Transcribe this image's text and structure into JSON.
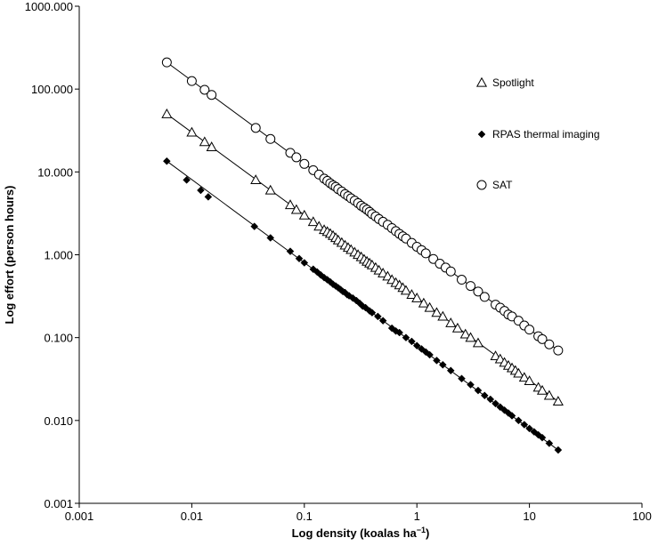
{
  "chart_data": {
    "type": "scatter",
    "xscale": "log",
    "yscale": "log",
    "xlabel": "Log density (koalas ha",
    "xlabel_sup": "−1",
    "xlabel_end": ")",
    "ylabel": "Log effort (person hours)",
    "xlim": [
      0.001,
      100
    ],
    "ylim": [
      0.001,
      1000
    ],
    "xticks": [
      0.001,
      0.01,
      0.1,
      1,
      10,
      100
    ],
    "xtick_labels": [
      "0.001",
      "0.01",
      "0.1",
      "1",
      "10",
      "100"
    ],
    "yticks": [
      0.001,
      0.01,
      0.1,
      1,
      10,
      100,
      1000
    ],
    "ytick_labels": [
      "0.001",
      "0.010",
      "0.100",
      "1.000",
      "10.000",
      "100.000",
      "1000.000"
    ],
    "grid": false,
    "legend_position": "top-right",
    "series": [
      {
        "name": "Spotlight",
        "marker": "triangle-open",
        "fit_line": true,
        "x": [
          0.006,
          0.01,
          0.013,
          0.015,
          0.037,
          0.05,
          0.075,
          0.085,
          0.1,
          0.12,
          0.135,
          0.15,
          0.16,
          0.17,
          0.18,
          0.19,
          0.2,
          0.215,
          0.23,
          0.245,
          0.26,
          0.28,
          0.3,
          0.32,
          0.34,
          0.36,
          0.38,
          0.4,
          0.43,
          0.46,
          0.5,
          0.55,
          0.6,
          0.65,
          0.7,
          0.75,
          0.8,
          0.9,
          1.0,
          1.15,
          1.3,
          1.5,
          1.7,
          2.0,
          2.3,
          2.7,
          3.0,
          3.5,
          5.0,
          5.5,
          6.0,
          6.5,
          7.0,
          7.5,
          8.0,
          9.0,
          10.0,
          12.0,
          13.0,
          15.0,
          18.0
        ],
        "y": [
          50,
          30,
          23,
          20,
          8,
          6,
          4,
          3.5,
          3,
          2.5,
          2.2,
          2,
          1.9,
          1.8,
          1.7,
          1.6,
          1.5,
          1.4,
          1.3,
          1.22,
          1.15,
          1.07,
          1.0,
          0.94,
          0.88,
          0.83,
          0.79,
          0.75,
          0.7,
          0.65,
          0.6,
          0.55,
          0.5,
          0.46,
          0.43,
          0.4,
          0.37,
          0.33,
          0.3,
          0.26,
          0.23,
          0.2,
          0.18,
          0.15,
          0.13,
          0.11,
          0.1,
          0.086,
          0.06,
          0.055,
          0.05,
          0.046,
          0.043,
          0.04,
          0.037,
          0.033,
          0.03,
          0.025,
          0.023,
          0.02,
          0.017
        ]
      },
      {
        "name": "RPAS thermal imaging",
        "marker": "diamond-filled",
        "fit_line": true,
        "x": [
          0.006,
          0.009,
          0.012,
          0.014,
          0.036,
          0.05,
          0.075,
          0.09,
          0.1,
          0.12,
          0.13,
          0.14,
          0.15,
          0.16,
          0.17,
          0.18,
          0.19,
          0.2,
          0.21,
          0.22,
          0.23,
          0.24,
          0.25,
          0.27,
          0.29,
          0.31,
          0.33,
          0.35,
          0.38,
          0.4,
          0.45,
          0.5,
          0.6,
          0.65,
          0.7,
          0.8,
          0.9,
          1.0,
          1.1,
          1.2,
          1.3,
          1.5,
          1.7,
          2.0,
          2.5,
          3.0,
          3.5,
          4.0,
          4.5,
          5.0,
          5.5,
          6.0,
          6.5,
          7.0,
          8.0,
          9.0,
          10.0,
          11.0,
          12.0,
          13.0,
          15.0,
          18.0
        ],
        "y": [
          13.5,
          8,
          6,
          5,
          2.2,
          1.6,
          1.1,
          0.9,
          0.8,
          0.67,
          0.62,
          0.57,
          0.53,
          0.5,
          0.47,
          0.44,
          0.42,
          0.4,
          0.38,
          0.36,
          0.35,
          0.33,
          0.32,
          0.3,
          0.28,
          0.26,
          0.24,
          0.23,
          0.21,
          0.2,
          0.18,
          0.16,
          0.13,
          0.12,
          0.115,
          0.1,
          0.09,
          0.08,
          0.073,
          0.067,
          0.062,
          0.053,
          0.047,
          0.04,
          0.032,
          0.027,
          0.023,
          0.02,
          0.018,
          0.016,
          0.0145,
          0.0133,
          0.0123,
          0.0114,
          0.01,
          0.0089,
          0.008,
          0.0073,
          0.0067,
          0.0062,
          0.0053,
          0.0044
        ]
      },
      {
        "name": "SAT",
        "marker": "circle-open",
        "fit_line": true,
        "x": [
          0.006,
          0.01,
          0.013,
          0.015,
          0.037,
          0.05,
          0.075,
          0.085,
          0.1,
          0.12,
          0.135,
          0.15,
          0.16,
          0.17,
          0.18,
          0.19,
          0.2,
          0.215,
          0.23,
          0.245,
          0.26,
          0.28,
          0.3,
          0.32,
          0.34,
          0.36,
          0.38,
          0.4,
          0.43,
          0.46,
          0.5,
          0.55,
          0.6,
          0.65,
          0.7,
          0.75,
          0.8,
          0.9,
          1.0,
          1.1,
          1.2,
          1.4,
          1.6,
          1.8,
          2.0,
          2.5,
          3.0,
          3.5,
          4.0,
          5.0,
          5.5,
          6.0,
          6.5,
          7.0,
          8.0,
          9.0,
          10.0,
          12.0,
          13.0,
          15.0,
          18.0
        ],
        "y": [
          210,
          125,
          98,
          85,
          34,
          25,
          17,
          15,
          12.5,
          10.5,
          9.3,
          8.3,
          7.8,
          7.3,
          6.9,
          6.6,
          6.2,
          5.8,
          5.4,
          5.1,
          4.8,
          4.5,
          4.2,
          3.9,
          3.7,
          3.5,
          3.3,
          3.1,
          2.9,
          2.7,
          2.5,
          2.3,
          2.1,
          1.93,
          1.79,
          1.67,
          1.57,
          1.39,
          1.25,
          1.14,
          1.04,
          0.89,
          0.78,
          0.7,
          0.63,
          0.5,
          0.42,
          0.36,
          0.31,
          0.25,
          0.23,
          0.21,
          0.19,
          0.18,
          0.16,
          0.14,
          0.125,
          0.104,
          0.096,
          0.083,
          0.07
        ]
      }
    ]
  }
}
